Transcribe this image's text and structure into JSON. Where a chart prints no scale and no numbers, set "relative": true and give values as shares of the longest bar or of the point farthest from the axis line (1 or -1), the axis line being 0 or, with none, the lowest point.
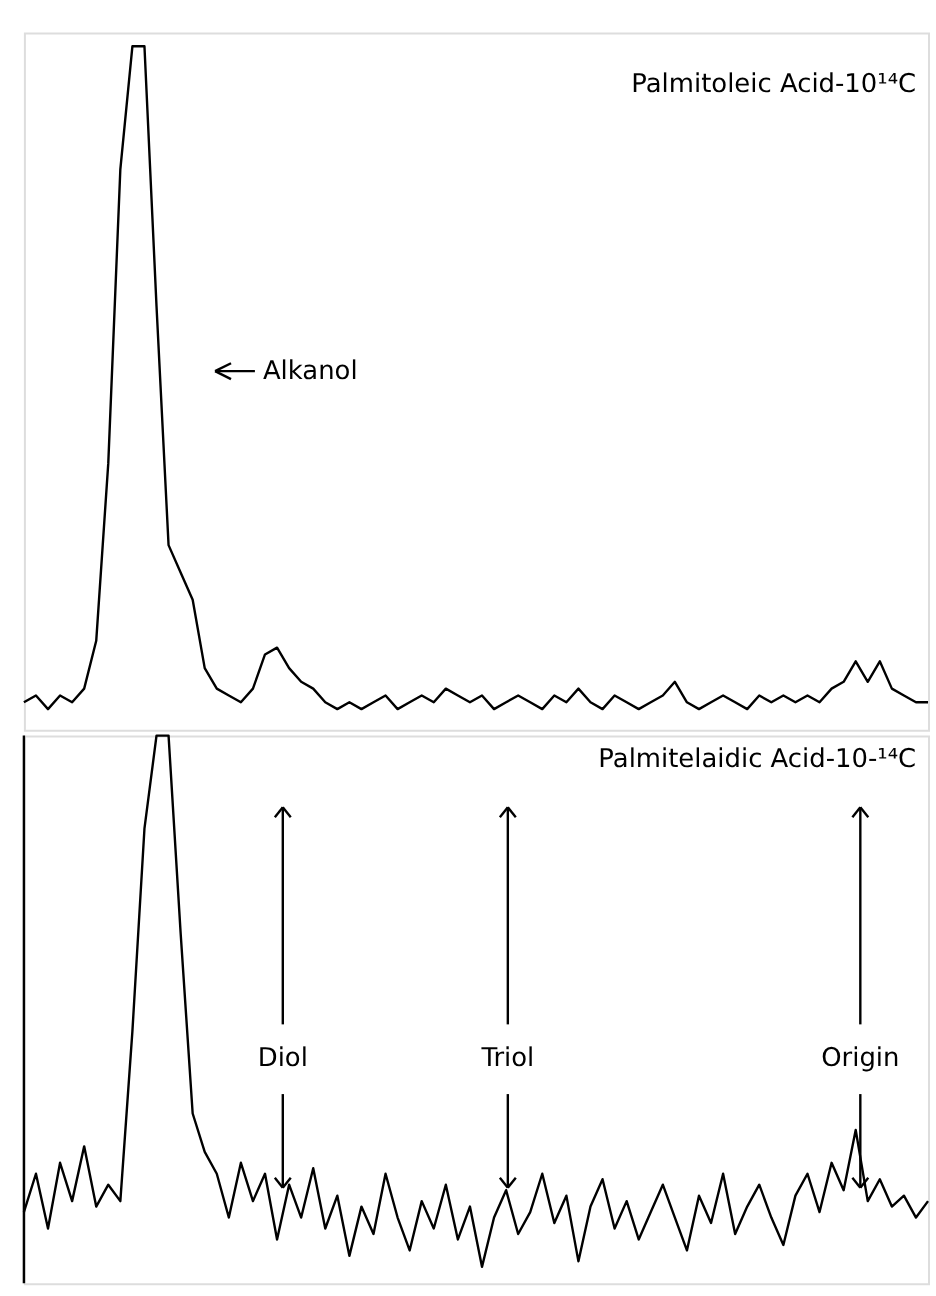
{
  "chart_data": [
    {
      "type": "line",
      "relative": true,
      "categories": [
        null,
        null,
        null,
        null,
        null,
        null,
        null,
        null,
        null,
        null,
        null,
        null,
        null,
        null,
        null,
        null,
        null,
        null,
        null,
        null,
        null,
        null,
        null,
        null,
        null,
        null,
        null,
        null,
        null,
        null,
        null,
        null,
        null,
        null,
        null,
        null,
        null,
        null,
        null,
        null,
        null,
        null,
        null,
        null,
        null,
        null,
        null,
        null,
        null,
        null,
        null,
        null,
        null,
        null,
        null,
        null,
        null,
        null,
        null,
        null,
        null,
        null,
        null,
        null,
        null,
        null,
        null,
        null,
        null,
        null,
        null,
        null,
        null,
        null,
        null,
        null
      ],
      "series": [
        {
          "color": "#000000",
          "values": [
            0.04,
            0.05,
            0.03,
            0.05,
            0.04,
            0.06,
            0.13,
            0.39,
            0.82,
            1,
            1,
            0.62,
            0.27,
            0.23,
            0.19,
            0.09,
            0.06,
            0.05,
            0.04,
            0.06,
            0.11,
            0.12,
            0.09,
            0.07,
            0.06,
            0.04,
            0.03,
            0.04,
            0.03,
            0.04,
            0.05,
            0.03,
            0.04,
            0.05,
            0.04,
            0.06,
            0.05,
            0.04,
            0.05,
            0.03,
            0.04,
            0.05,
            0.04,
            0.03,
            0.05,
            0.04,
            0.06,
            0.04,
            0.03,
            0.05,
            0.04,
            0.03,
            0.04,
            0.05,
            0.07,
            0.04,
            0.03,
            0.04,
            0.05,
            0.04,
            0.03,
            0.05,
            0.04,
            0.05,
            0.04,
            0.05,
            0.04,
            0.06,
            0.07,
            0.1,
            0.07,
            0.1,
            0.06,
            0.05,
            0.04,
            0.04
          ]
        }
      ],
      "annotations": [
        "Palmitoleic Acid-10¹⁴C",
        "Alkanol"
      ]
    },
    {
      "type": "line",
      "relative": true,
      "categories": [
        null,
        null,
        null,
        null,
        null,
        null,
        null,
        null,
        null,
        null,
        null,
        null,
        null,
        null,
        null,
        null,
        null,
        null,
        null,
        null,
        null,
        null,
        null,
        null,
        null,
        null,
        null,
        null,
        null,
        null,
        null,
        null,
        null,
        null,
        null,
        null,
        null,
        null,
        null,
        null,
        null,
        null,
        null,
        null,
        null,
        null,
        null,
        null,
        null,
        null,
        null,
        null,
        null,
        null,
        null,
        null,
        null,
        null,
        null,
        null,
        null,
        null,
        null,
        null,
        null,
        null,
        null,
        null,
        null,
        null,
        null,
        null,
        null,
        null,
        null,
        null
      ],
      "series": [
        {
          "color": "#000000",
          "values": [
            0.13,
            0.2,
            0.1,
            0.22,
            0.15,
            0.25,
            0.14,
            0.18,
            0.15,
            0.46,
            0.83,
            1,
            1,
            0.64,
            0.31,
            0.24,
            0.2,
            0.12,
            0.22,
            0.15,
            0.2,
            0.08,
            0.18,
            0.12,
            0.21,
            0.1,
            0.16,
            0.05,
            0.14,
            0.09,
            0.2,
            0.12,
            0.06,
            0.15,
            0.1,
            0.18,
            0.08,
            0.14,
            0.03,
            0.12,
            0.17,
            0.09,
            0.13,
            0.2,
            0.11,
            0.16,
            0.04,
            0.14,
            0.19,
            0.1,
            0.15,
            0.08,
            0.13,
            0.18,
            0.12,
            0.06,
            0.16,
            0.11,
            0.2,
            0.09,
            0.14,
            0.18,
            0.12,
            0.07,
            0.16,
            0.2,
            0.13,
            0.22,
            0.17,
            0.28,
            0.15,
            0.19,
            0.14,
            0.16,
            0.12,
            0.15
          ]
        }
      ],
      "annotations": [
        "Palmitelaidic Acid-10-¹⁴C",
        "Diol",
        "Triol",
        "Origin"
      ]
    }
  ]
}
